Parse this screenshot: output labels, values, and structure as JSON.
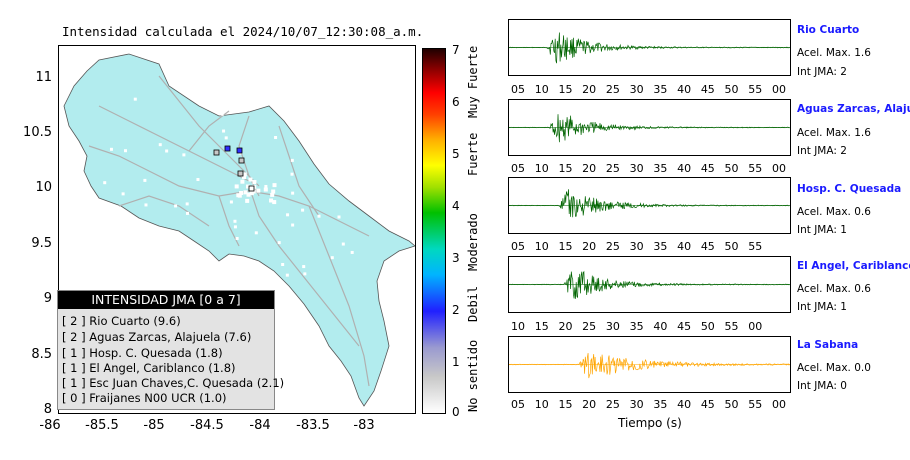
{
  "map": {
    "title": "Intensidad calculada el 2024/10/07_12:30:08_a.m.",
    "y_ticks": [
      "11",
      "10.5",
      "10",
      "9.5",
      "9",
      "8.5",
      "8"
    ],
    "x_ticks": [
      "-86",
      "-85.5",
      "-85",
      "-84.5",
      "-84",
      "-83.5",
      "-83"
    ],
    "land_color": "#b2ecee",
    "road_color": "#b0b0b0",
    "legend": {
      "title": "INTENSIDAD JMA [0 a 7]",
      "items": [
        "[ 2 ] Rio Cuarto (9.6)",
        "[ 2 ] Aguas Zarcas, Alajuela (7.6)",
        "[ 1 ] Hosp. C. Quesada (1.8)",
        "[ 1 ] El Angel, Cariblanco (1.8)",
        "[ 1 ] Esc Juan Chaves,C. Quesada (2.1)",
        "[ 0 ] Fraijanes N00 UCR (1.0)"
      ]
    }
  },
  "colorbar": {
    "ticks": [
      "7",
      "6",
      "5",
      "4",
      "3",
      "2",
      "1",
      "0"
    ],
    "labels": [
      "Muy Fuerte",
      "Fuerte",
      "Moderado",
      "Debil",
      "No sentido"
    ]
  },
  "waveforms": {
    "x_axis_title": "Tiempo (s)",
    "panels": [
      {
        "station": "Rio Cuarto",
        "accel": "Acel. Max. 1.6",
        "jma": "Int JMA: 2",
        "color": "#006400",
        "ticks": [
          "05",
          "10",
          "15",
          "20",
          "25",
          "30",
          "35",
          "40",
          "45",
          "50",
          "55",
          "00"
        ]
      },
      {
        "station": "Aguas Zarcas, Alajuela",
        "accel": "Acel. Max. 1.6",
        "jma": "Int JMA: 2",
        "color": "#006400",
        "ticks": [
          "05",
          "10",
          "15",
          "20",
          "25",
          "30",
          "35",
          "40",
          "45",
          "50",
          "55",
          "00"
        ]
      },
      {
        "station": "Hosp. C. Quesada",
        "accel": "Acel. Max. 0.6",
        "jma": "Int JMA: 1",
        "color": "#006400",
        "ticks": [
          "05",
          "10",
          "15",
          "20",
          "25",
          "30",
          "35",
          "40",
          "45",
          "50",
          "55"
        ]
      },
      {
        "station": "El Angel, Cariblanco",
        "accel": "Acel. Max. 0.6",
        "jma": "Int JMA: 1",
        "color": "#006400",
        "ticks": [
          "10",
          "15",
          "20",
          "25",
          "30",
          "35",
          "40",
          "45",
          "50",
          "55",
          "00"
        ]
      },
      {
        "station": "La Sabana",
        "accel": "Acel. Max. 0.0",
        "jma": "Int JMA: 0",
        "color": "#ffa500",
        "ticks": [
          "05",
          "10",
          "15",
          "20",
          "25",
          "30",
          "35",
          "40",
          "45",
          "50",
          "55",
          "00"
        ]
      }
    ]
  }
}
